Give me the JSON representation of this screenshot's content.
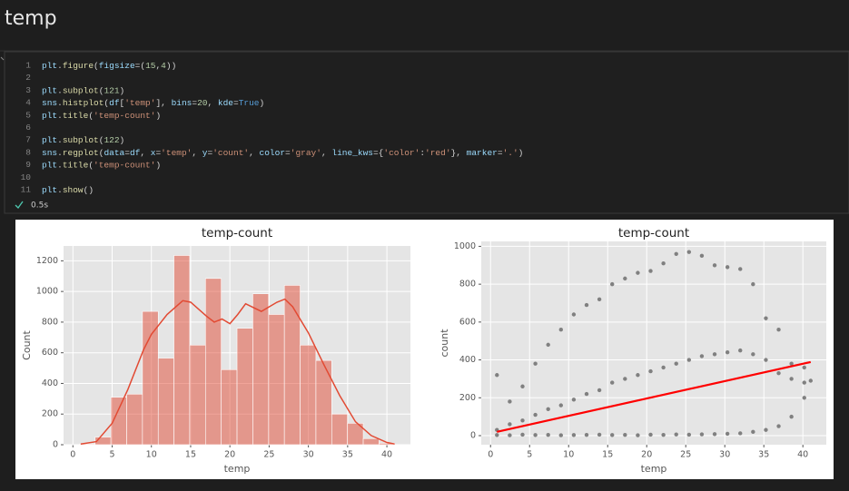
{
  "header": {
    "title": "temp"
  },
  "cell": {
    "lines": [
      {
        "n": 1,
        "text": "plt.figure(figsize=(15,4))"
      },
      {
        "n": 2
      },
      {
        "n": 3,
        "text": "plt.subplot(121)"
      },
      {
        "n": 4,
        "text": "sns.histplot(df['temp'], bins=20, kde=True)"
      },
      {
        "n": 5,
        "text": "plt.title('temp-count')"
      },
      {
        "n": 6
      },
      {
        "n": 7,
        "text": "plt.subplot(122)"
      },
      {
        "n": 8,
        "text": "sns.regplot(data=df, x='temp', y='count', color='gray', line_kws={'color':'red'}, marker='.')"
      },
      {
        "n": 9,
        "text": "plt.title('temp-count')"
      },
      {
        "n": 10
      },
      {
        "n": 11,
        "text": "plt.show()"
      }
    ],
    "status": "0.5s"
  },
  "chart_data": [
    {
      "type": "histogram",
      "title": "temp-count",
      "xlabel": "temp",
      "ylabel": "Count",
      "bins": [
        0.82,
        2.83,
        4.84,
        6.85,
        8.86,
        10.87,
        12.87,
        14.88,
        16.89,
        18.9,
        20.91,
        22.92,
        24.93,
        26.94,
        28.95,
        30.96,
        32.97,
        34.98,
        36.99,
        39.0,
        41.0
      ],
      "values": [
        5,
        50,
        310,
        330,
        870,
        565,
        1235,
        650,
        1085,
        490,
        760,
        985,
        850,
        1040,
        650,
        550,
        200,
        140,
        40,
        10
      ],
      "color": "#E24A33",
      "kde": {
        "x": [
          1,
          3,
          5,
          7,
          9,
          10,
          12,
          14,
          15,
          17,
          18,
          19,
          20,
          21,
          22,
          24,
          26,
          27,
          28,
          30,
          32,
          34,
          36,
          38,
          40,
          41
        ],
        "y": [
          5,
          20,
          140,
          360,
          620,
          720,
          850,
          940,
          930,
          840,
          800,
          820,
          790,
          850,
          920,
          870,
          930,
          950,
          900,
          730,
          520,
          320,
          150,
          60,
          15,
          5
        ]
      },
      "xlim": [
        -1.19,
        43.0
      ],
      "ylim": [
        0,
        1297
      ],
      "xticks": [
        0,
        5,
        10,
        15,
        20,
        25,
        30,
        35,
        40
      ],
      "yticks": [
        0,
        200,
        400,
        600,
        800,
        1000,
        1200
      ],
      "grid": true
    },
    {
      "type": "scatter",
      "title": "temp-count",
      "xlabel": "temp",
      "ylabel": "count",
      "color": "gray",
      "x": [
        0.82,
        0.82,
        0.82,
        2.46,
        2.46,
        2.46,
        4.1,
        4.1,
        4.1,
        5.74,
        5.74,
        5.74,
        7.38,
        7.38,
        7.38,
        9.02,
        9.02,
        9.02,
        10.66,
        10.66,
        10.66,
        12.3,
        12.3,
        12.3,
        13.94,
        13.94,
        13.94,
        15.58,
        15.58,
        15.58,
        17.22,
        17.22,
        17.22,
        18.86,
        18.86,
        18.86,
        20.5,
        20.5,
        20.5,
        22.14,
        22.14,
        22.14,
        23.78,
        23.78,
        23.78,
        25.42,
        25.42,
        25.42,
        27.06,
        27.06,
        27.06,
        28.7,
        28.7,
        28.7,
        30.34,
        30.34,
        30.34,
        31.98,
        31.98,
        31.98,
        33.62,
        33.62,
        33.62,
        35.26,
        35.26,
        35.26,
        36.9,
        36.9,
        36.9,
        38.54,
        38.54,
        38.54,
        40.18,
        40.18,
        40.18,
        41.0
      ],
      "y": [
        3,
        30,
        320,
        2,
        60,
        180,
        5,
        80,
        260,
        3,
        110,
        380,
        4,
        140,
        480,
        2,
        160,
        560,
        3,
        190,
        640,
        4,
        220,
        690,
        5,
        240,
        720,
        3,
        280,
        800,
        4,
        300,
        830,
        2,
        320,
        860,
        5,
        340,
        870,
        4,
        360,
        910,
        6,
        380,
        960,
        5,
        400,
        970,
        7,
        420,
        950,
        8,
        430,
        900,
        10,
        440,
        890,
        12,
        450,
        880,
        20,
        430,
        800,
        30,
        400,
        620,
        50,
        330,
        560,
        100,
        300,
        380,
        200,
        280,
        360,
        290
      ],
      "regression": {
        "x": [
          0.82,
          41.0
        ],
        "y": [
          20,
          389
        ],
        "color": "red"
      },
      "xlim": [
        -1.19,
        43.0
      ],
      "ylim": [
        -48,
        1026
      ],
      "xticks": [
        0,
        5,
        10,
        15,
        20,
        25,
        30,
        35,
        40
      ],
      "yticks": [
        0,
        200,
        400,
        600,
        800,
        1000
      ],
      "grid": true
    }
  ]
}
